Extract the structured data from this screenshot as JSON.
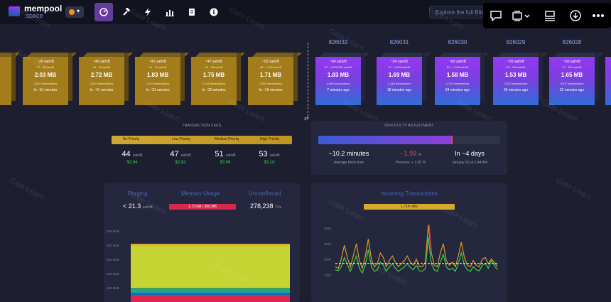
{
  "nav": {
    "logo_line1": "mempool",
    "logo_line2": ".space",
    "search_placeholder": "Explore the full Bitc",
    "icons": [
      "dashboard-icon",
      "mining-hammer-icon",
      "lightning-icon",
      "graphs-icon",
      "docs-icon",
      "about-icon"
    ]
  },
  "overlay": {
    "icons": [
      "comment-icon",
      "screen-capture-icon",
      "view-icon",
      "download-icon",
      "more-icon"
    ]
  },
  "watermark": "Gate Learn",
  "pending_blocks": [
    {
      "fee": "",
      "range": "",
      "size": "",
      "tx": "",
      "time": ""
    },
    {
      "fee": "~39 sat/vB",
      "range": "37 - 40 sat/vB",
      "size": "2.03 MB",
      "tx": "2,003 transactions",
      "time": "In ~51 minutes"
    },
    {
      "fee": "~40 sat/vB",
      "range": "40 - 40 sat/vB",
      "size": "2.72 MB",
      "tx": "2,063 transactions",
      "time": "In ~41 minutes"
    },
    {
      "fee": "~41 sat/vB",
      "range": "41 - 41 sat/vB",
      "size": "1.83 MB",
      "tx": "2,152 transactions",
      "time": "In ~31 minutes"
    },
    {
      "fee": "~47 sat/vB",
      "range": "41 - 48 sat/vB",
      "size": "1.75 MB",
      "tx": "2,148 transactions",
      "time": "In ~20 minutes"
    },
    {
      "fee": "~52 sat/vB",
      "range": "48 - 1,015 sat/vB",
      "size": "1.71 MB",
      "tx": "2,059 transactions",
      "time": "In ~10 minutes"
    }
  ],
  "mined_blocks": [
    {
      "height": "826032",
      "fee": "~60 sat/vB",
      "range": "51 - 1,000,000 sat/vB",
      "size": "1.83 MB",
      "tx": "4,590 transactions",
      "time": "7 minutes ago"
    },
    {
      "height": "826031",
      "fee": "~54 sat/vB",
      "range": "51 - 1,245 sat/vB",
      "size": "1.69 MB",
      "tx": "4,148 transactions",
      "time": "18 minutes ago"
    },
    {
      "height": "826030",
      "fee": "~60 sat/vB",
      "range": "51 - 1,028 sat/vB",
      "size": "1.58 MB",
      "tx": "2,782 transactions",
      "time": "24 minutes ago"
    },
    {
      "height": "826029",
      "fee": "~66 sat/vB",
      "range": "55 - 418 sat/vB",
      "size": "1.53 MB",
      "tx": "3,322 transactions",
      "time": "35 minutes ago"
    },
    {
      "height": "826028",
      "fee": "~60 sat/vB",
      "range": "47 - 961 sat/vB",
      "size": "1.65 MB",
      "tx": "3,977 transactions",
      "time": "52 minutes ago"
    }
  ],
  "fees": {
    "title": "TRANSACTION FEES",
    "labels": [
      "No Priority",
      "Low Priority",
      "Medium Priority",
      "High Priority"
    ],
    "values": [
      "44",
      "47",
      "51",
      "53"
    ],
    "unit": "sat/vB",
    "usd": [
      "$2.64",
      "$2.82",
      "$3.06",
      "$3.18"
    ]
  },
  "difficulty": {
    "title": "DIFFICULTY ADJUSTMENT",
    "progress_fraction": 0.74,
    "blocks_value": "~10.2 minutes",
    "blocks_label": "Average block time",
    "change_value": "- 1.99",
    "change_unit": "%",
    "change_label": "Previous: + 1.65 %",
    "eta_value": "In ~4 days",
    "eta_label": "January 20 at 2:44 AM",
    "colors": {
      "fill_start": "#3b5bd6",
      "fill_end": "#8d3fd8",
      "marker": "#ff3b5b",
      "change": "#ff3b5b"
    }
  },
  "mempool_stats": {
    "purging_label": "Purging",
    "purging_value": "< 21.3",
    "purging_unit": "sat/vB",
    "memory_label": "Memory Usage",
    "memory_value": "1.73 GB / 300 MB",
    "unconfirmed_label": "Unconfirmed",
    "unconfirmed_value": "278,238",
    "unconfirmed_unit": "TXs"
  },
  "incoming": {
    "title": "Incoming Transactions",
    "rate_label": "1,714 vB/s"
  },
  "chart_data": [
    {
      "type": "area",
      "title": "",
      "ylabel": "",
      "ylim": [
        0,
        500
      ],
      "y_ticks": [
        "600 MvB",
        "500 MvB",
        "400 MvB",
        "300 MvB",
        "200 MvB",
        "100 MvB"
      ],
      "y_tick_values": [
        600,
        500,
        400,
        300,
        200,
        100
      ],
      "series": [
        {
          "color": "#d7294d",
          "values": [
            50,
            50,
            50,
            50,
            50,
            50,
            50,
            50,
            50,
            50,
            50,
            50,
            50,
            50
          ]
        },
        {
          "color": "#1a6ab0",
          "values": [
            15,
            15,
            15,
            15,
            15,
            15,
            15,
            15,
            15,
            15,
            15,
            15,
            15,
            15
          ]
        },
        {
          "color": "#13a5bd",
          "values": [
            15,
            15,
            15,
            15,
            15,
            15,
            15,
            15,
            15,
            15,
            15,
            15,
            15,
            15
          ]
        },
        {
          "color": "#3ba35c",
          "values": [
            20,
            20,
            20,
            20,
            20,
            20,
            20,
            20,
            20,
            20,
            20,
            20,
            20,
            20
          ]
        },
        {
          "color": "#c6d534",
          "values": [
            300,
            300,
            300,
            300,
            300,
            300,
            300,
            300,
            300,
            300,
            300,
            300,
            300,
            300
          ]
        },
        {
          "color": "#e8b62b",
          "values": [
            10,
            10,
            10,
            10,
            10,
            10,
            10,
            10,
            10,
            10,
            10,
            10,
            10,
            10
          ]
        }
      ]
    },
    {
      "type": "line",
      "title": "Incoming Transactions",
      "ylim": [
        0,
        5000
      ],
      "y_ticks": [
        "5000",
        "4000",
        "3000",
        "2000",
        "1000"
      ],
      "y_tick_values": [
        5000,
        4000,
        3000,
        2000,
        1000
      ],
      "reference_line": 1714,
      "series": [
        {
          "color": "#3bcc49",
          "values": [
            1300,
            1250,
            1500,
            2100,
            1650,
            1200,
            1700,
            2200,
            1400,
            1100,
            1600,
            2600,
            1500,
            1200,
            1300,
            1800,
            1600,
            1200,
            1500,
            1700,
            1400,
            1200,
            1350,
            1500,
            1700,
            1450,
            1300,
            1600,
            1250,
            1200,
            1400,
            3400,
            1700,
            1300,
            1200,
            1800,
            2300,
            1500,
            1300,
            1400,
            1200,
            1700,
            2400,
            1600,
            1300,
            1200,
            1500,
            1300,
            1250,
            1600,
            1700,
            1400,
            1900,
            1600,
            1300
          ]
        },
        {
          "color": "#d79b24",
          "values": [
            1500,
            1400,
            2000,
            2900,
            2100,
            1500,
            2200,
            3000,
            1900,
            1400,
            2200,
            3300,
            2000,
            1500,
            1700,
            2400,
            2100,
            1500,
            1900,
            2200,
            1800,
            1500,
            1700,
            1900,
            2200,
            1800,
            1600,
            2000,
            1500,
            1500,
            1800,
            4200,
            2400,
            1600,
            1500,
            2400,
            3000,
            1900,
            1600,
            1800,
            1500,
            2200,
            3100,
            2100,
            1600,
            1500,
            1900,
            1600,
            1500,
            2000,
            2100,
            1700,
            2000,
            1800,
            1500
          ]
        },
        {
          "color": "#d7294d",
          "values": [
            0,
            0,
            0,
            0,
            0,
            0,
            0,
            0,
            0,
            0,
            0,
            0,
            0,
            0,
            0,
            0,
            0,
            0,
            0,
            0,
            0,
            0,
            0,
            0,
            0,
            0,
            0,
            0,
            0,
            0,
            0,
            4800,
            2600,
            0,
            0,
            0,
            0,
            0,
            0,
            0,
            0,
            0,
            0,
            0,
            0,
            0,
            0,
            0,
            0,
            0,
            0,
            0,
            0,
            0,
            0
          ]
        }
      ]
    }
  ]
}
